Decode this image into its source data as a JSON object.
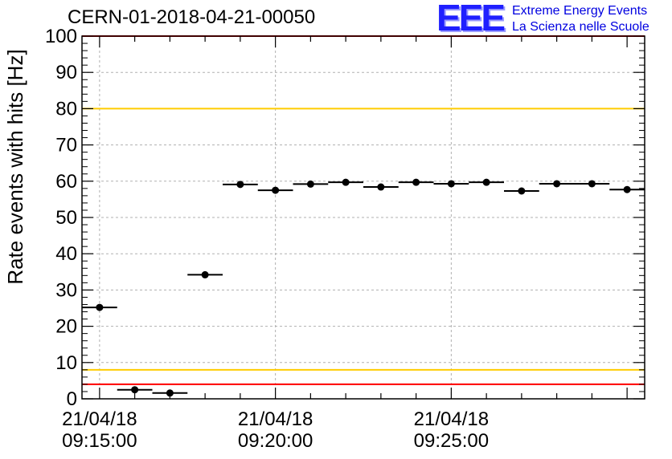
{
  "title": "CERN-01-2018-04-21-00050",
  "logo": {
    "mark": "EEE",
    "line1": "Extreme Energy Events",
    "line2": "La Scienza nelle Scuole"
  },
  "chart_data": {
    "type": "scatter",
    "title": "CERN-01-2018-04-21-00050",
    "xlabel": "",
    "ylabel": "Rate events with hits [Hz]",
    "xlim": [
      "2018-04-21 09:14:30",
      "2018-04-21 09:30:30"
    ],
    "ylim": [
      0,
      100
    ],
    "grid": true,
    "x_ticks": [
      {
        "x": "2018-04-21 09:15:00",
        "date": "21/04/18",
        "time": "09:15:00"
      },
      {
        "x": "2018-04-21 09:20:00",
        "date": "21/04/18",
        "time": "09:20:00"
      },
      {
        "x": "2018-04-21 09:25:00",
        "date": "21/04/18",
        "time": "09:25:00"
      }
    ],
    "y_ticks": [
      0,
      10,
      20,
      30,
      40,
      50,
      60,
      70,
      80,
      90,
      100
    ],
    "reference_lines": [
      {
        "y": 100,
        "color": "#ff0000"
      },
      {
        "y": 80,
        "color": "#ffcc00"
      },
      {
        "y": 8,
        "color": "#ffcc00"
      },
      {
        "y": 4,
        "color": "#ff0000"
      }
    ],
    "bin_width_seconds": 60,
    "points": [
      {
        "x": "2018-04-21 09:15:00",
        "y": 25.2
      },
      {
        "x": "2018-04-21 09:16:00",
        "y": 2.5
      },
      {
        "x": "2018-04-21 09:17:00",
        "y": 1.6
      },
      {
        "x": "2018-04-21 09:18:00",
        "y": 34.2
      },
      {
        "x": "2018-04-21 09:19:00",
        "y": 59.1
      },
      {
        "x": "2018-04-21 09:20:00",
        "y": 57.5
      },
      {
        "x": "2018-04-21 09:21:00",
        "y": 59.2
      },
      {
        "x": "2018-04-21 09:22:00",
        "y": 59.7
      },
      {
        "x": "2018-04-21 09:23:00",
        "y": 58.4
      },
      {
        "x": "2018-04-21 09:24:00",
        "y": 59.7
      },
      {
        "x": "2018-04-21 09:25:00",
        "y": 59.3
      },
      {
        "x": "2018-04-21 09:26:00",
        "y": 59.7
      },
      {
        "x": "2018-04-21 09:27:00",
        "y": 57.3
      },
      {
        "x": "2018-04-21 09:28:00",
        "y": 59.3
      },
      {
        "x": "2018-04-21 09:29:00",
        "y": 59.3
      },
      {
        "x": "2018-04-21 09:30:00",
        "y": 57.7
      }
    ],
    "marker_color": "#000000"
  }
}
